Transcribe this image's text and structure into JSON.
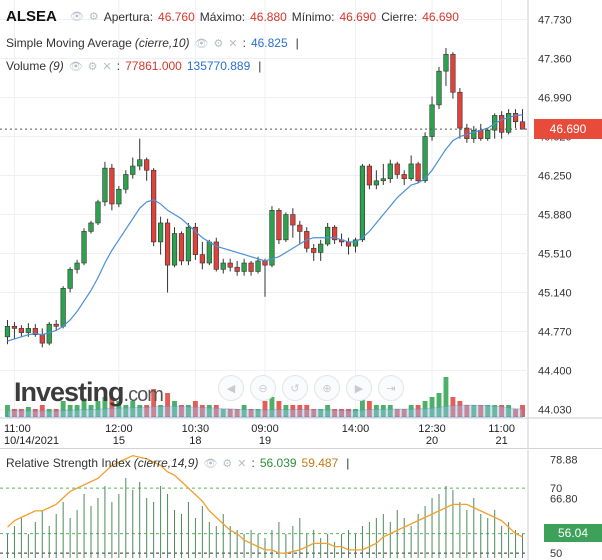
{
  "header": {
    "symbol": "ALSEA",
    "open_label": "Apertura:",
    "open_value": "46.760",
    "high_label": "Máximo:",
    "high_value": "46.880",
    "low_label": "Mínimo:",
    "low_value": "46.690",
    "close_label": "Cierre:",
    "close_value": "46.690",
    "sma_label": "Simple Moving Average",
    "sma_params": "(cierre,10)",
    "sma_value": "46.825",
    "volume_label": "Volume",
    "volume_params": "(9)",
    "volume_value1": "77861.000",
    "volume_value2": "135770.889"
  },
  "price_axis": {
    "ticks": [
      "47.730",
      "47.360",
      "46.990",
      "46.620",
      "46.250",
      "45.880",
      "45.510",
      "45.140",
      "44.770",
      "44.400",
      "44.030"
    ],
    "current_price": "46.690"
  },
  "time_axis": {
    "labels": [
      {
        "time": "11:00",
        "date": "10/14/2021"
      },
      {
        "time": "12:00",
        "date": "15"
      },
      {
        "time": "10:30",
        "date": "18"
      },
      {
        "time": "09:00",
        "date": "19"
      },
      {
        "time": "14:00",
        "date": ""
      },
      {
        "time": "12:30",
        "date": "20"
      },
      {
        "time": "11:00",
        "date": "21"
      }
    ]
  },
  "logo": {
    "brand": "Investing",
    "suffix": ".com"
  },
  "nav_icons": [
    "scroll-left-icon",
    "zoom-out-icon",
    "reset-icon",
    "zoom-in-icon",
    "scroll-right-icon",
    "scroll-end-icon"
  ],
  "rsi": {
    "label": "Relative Strength Index",
    "params": "(cierre,14,9)",
    "value1": "56.039",
    "value2": "59.487",
    "ticks": [
      "78.88",
      "70",
      "66.80",
      "50"
    ],
    "badge": "56.04"
  },
  "colors": {
    "up": "#2ca24e",
    "down": "#e0413a",
    "sma": "#4a90d9",
    "rsi_line": "#f0a030",
    "badge_red": "#e84b3a",
    "badge_green": "#3ea15a"
  },
  "chart_data": {
    "type": "candlestick",
    "y_range": [
      43.95,
      47.82
    ],
    "candles": [
      {
        "o": 44.72,
        "h": 44.88,
        "l": 44.65,
        "c": 44.82
      },
      {
        "o": 44.82,
        "h": 44.86,
        "l": 44.7,
        "c": 44.8
      },
      {
        "o": 44.8,
        "h": 44.83,
        "l": 44.72,
        "c": 44.76
      },
      {
        "o": 44.76,
        "h": 44.85,
        "l": 44.72,
        "c": 44.8
      },
      {
        "o": 44.8,
        "h": 44.84,
        "l": 44.72,
        "c": 44.74
      },
      {
        "o": 44.74,
        "h": 44.8,
        "l": 44.62,
        "c": 44.66
      },
      {
        "o": 44.66,
        "h": 44.86,
        "l": 44.64,
        "c": 44.84
      },
      {
        "o": 44.84,
        "h": 44.88,
        "l": 44.78,
        "c": 44.82
      },
      {
        "o": 44.82,
        "h": 45.2,
        "l": 44.8,
        "c": 45.18
      },
      {
        "o": 45.18,
        "h": 45.38,
        "l": 45.14,
        "c": 45.36
      },
      {
        "o": 45.36,
        "h": 45.45,
        "l": 45.32,
        "c": 45.42
      },
      {
        "o": 45.42,
        "h": 45.75,
        "l": 45.4,
        "c": 45.72
      },
      {
        "o": 45.72,
        "h": 45.82,
        "l": 45.7,
        "c": 45.8
      },
      {
        "o": 45.8,
        "h": 46.02,
        "l": 45.78,
        "c": 46.0
      },
      {
        "o": 46.0,
        "h": 46.38,
        "l": 45.96,
        "c": 46.32
      },
      {
        "o": 46.32,
        "h": 46.36,
        "l": 45.92,
        "c": 45.98
      },
      {
        "o": 45.98,
        "h": 46.15,
        "l": 45.95,
        "c": 46.12
      },
      {
        "o": 46.12,
        "h": 46.3,
        "l": 46.08,
        "c": 46.26
      },
      {
        "o": 46.26,
        "h": 46.42,
        "l": 46.22,
        "c": 46.34
      },
      {
        "o": 46.34,
        "h": 46.6,
        "l": 46.3,
        "c": 46.4
      },
      {
        "o": 46.4,
        "h": 46.42,
        "l": 46.2,
        "c": 46.3
      },
      {
        "o": 46.3,
        "h": 46.32,
        "l": 45.58,
        "c": 45.62
      },
      {
        "o": 45.62,
        "h": 45.86,
        "l": 45.5,
        "c": 45.8
      },
      {
        "o": 45.8,
        "h": 45.84,
        "l": 45.14,
        "c": 45.4
      },
      {
        "o": 45.4,
        "h": 45.76,
        "l": 45.38,
        "c": 45.7
      },
      {
        "o": 45.7,
        "h": 45.72,
        "l": 45.4,
        "c": 45.44
      },
      {
        "o": 45.44,
        "h": 45.8,
        "l": 45.4,
        "c": 45.76
      },
      {
        "o": 45.76,
        "h": 45.8,
        "l": 45.45,
        "c": 45.5
      },
      {
        "o": 45.5,
        "h": 45.62,
        "l": 45.36,
        "c": 45.42
      },
      {
        "o": 45.42,
        "h": 45.64,
        "l": 45.4,
        "c": 45.62
      },
      {
        "o": 45.62,
        "h": 45.66,
        "l": 45.34,
        "c": 45.36
      },
      {
        "o": 45.36,
        "h": 45.46,
        "l": 45.32,
        "c": 45.42
      },
      {
        "o": 45.42,
        "h": 45.46,
        "l": 45.34,
        "c": 45.38
      },
      {
        "o": 45.38,
        "h": 45.44,
        "l": 45.3,
        "c": 45.34
      },
      {
        "o": 45.34,
        "h": 45.46,
        "l": 45.3,
        "c": 45.42
      },
      {
        "o": 45.42,
        "h": 45.44,
        "l": 45.3,
        "c": 45.34
      },
      {
        "o": 45.34,
        "h": 45.48,
        "l": 45.32,
        "c": 45.44
      },
      {
        "o": 45.44,
        "h": 45.46,
        "l": 45.1,
        "c": 45.4
      },
      {
        "o": 45.4,
        "h": 45.96,
        "l": 45.38,
        "c": 45.92
      },
      {
        "o": 45.92,
        "h": 45.94,
        "l": 45.6,
        "c": 45.64
      },
      {
        "o": 45.64,
        "h": 45.9,
        "l": 45.62,
        "c": 45.88
      },
      {
        "o": 45.88,
        "h": 45.94,
        "l": 45.66,
        "c": 45.78
      },
      {
        "o": 45.78,
        "h": 45.82,
        "l": 45.6,
        "c": 45.72
      },
      {
        "o": 45.72,
        "h": 45.76,
        "l": 45.52,
        "c": 45.56
      },
      {
        "o": 45.56,
        "h": 45.6,
        "l": 45.44,
        "c": 45.52
      },
      {
        "o": 45.52,
        "h": 45.64,
        "l": 45.44,
        "c": 45.6
      },
      {
        "o": 45.6,
        "h": 45.8,
        "l": 45.58,
        "c": 45.76
      },
      {
        "o": 45.76,
        "h": 45.78,
        "l": 45.6,
        "c": 45.64
      },
      {
        "o": 45.64,
        "h": 45.7,
        "l": 45.58,
        "c": 45.62
      },
      {
        "o": 45.62,
        "h": 45.66,
        "l": 45.5,
        "c": 45.58
      },
      {
        "o": 45.58,
        "h": 45.66,
        "l": 45.52,
        "c": 45.64
      },
      {
        "o": 45.64,
        "h": 46.36,
        "l": 45.62,
        "c": 46.34
      },
      {
        "o": 46.34,
        "h": 46.36,
        "l": 46.12,
        "c": 46.16
      },
      {
        "o": 46.16,
        "h": 46.3,
        "l": 46.12,
        "c": 46.2
      },
      {
        "o": 46.2,
        "h": 46.36,
        "l": 46.16,
        "c": 46.22
      },
      {
        "o": 46.22,
        "h": 46.4,
        "l": 46.18,
        "c": 46.36
      },
      {
        "o": 46.36,
        "h": 46.38,
        "l": 46.22,
        "c": 46.26
      },
      {
        "o": 46.26,
        "h": 46.3,
        "l": 46.16,
        "c": 46.22
      },
      {
        "o": 46.22,
        "h": 46.44,
        "l": 46.2,
        "c": 46.36
      },
      {
        "o": 46.36,
        "h": 46.38,
        "l": 46.18,
        "c": 46.2
      },
      {
        "o": 46.2,
        "h": 46.66,
        "l": 46.18,
        "c": 46.62
      },
      {
        "o": 46.62,
        "h": 47.0,
        "l": 46.58,
        "c": 46.92
      },
      {
        "o": 46.92,
        "h": 47.28,
        "l": 46.88,
        "c": 47.24
      },
      {
        "o": 47.24,
        "h": 47.46,
        "l": 47.1,
        "c": 47.4
      },
      {
        "o": 47.4,
        "h": 47.42,
        "l": 46.98,
        "c": 47.04
      },
      {
        "o": 47.04,
        "h": 47.08,
        "l": 46.6,
        "c": 46.7
      },
      {
        "o": 46.7,
        "h": 46.74,
        "l": 46.56,
        "c": 46.6
      },
      {
        "o": 46.6,
        "h": 46.72,
        "l": 46.56,
        "c": 46.68
      },
      {
        "o": 46.68,
        "h": 46.74,
        "l": 46.58,
        "c": 46.6
      },
      {
        "o": 46.6,
        "h": 46.7,
        "l": 46.58,
        "c": 46.68
      },
      {
        "o": 46.68,
        "h": 46.84,
        "l": 46.6,
        "c": 46.82
      },
      {
        "o": 46.82,
        "h": 46.86,
        "l": 46.6,
        "c": 46.66
      },
      {
        "o": 46.66,
        "h": 46.88,
        "l": 46.64,
        "c": 46.84
      },
      {
        "o": 46.84,
        "h": 46.88,
        "l": 46.7,
        "c": 46.76
      },
      {
        "o": 46.76,
        "h": 46.88,
        "l": 46.69,
        "c": 46.69
      }
    ],
    "sma": [
      44.68,
      44.7,
      44.72,
      44.74,
      44.75,
      44.74,
      44.76,
      44.78,
      44.82,
      44.88,
      44.96,
      45.06,
      45.16,
      45.28,
      45.42,
      45.54,
      45.64,
      45.74,
      45.84,
      45.94,
      46.0,
      46.02,
      45.98,
      45.92,
      45.88,
      45.84,
      45.78,
      45.72,
      45.66,
      45.62,
      45.58,
      45.56,
      45.54,
      45.52,
      45.5,
      45.48,
      45.46,
      45.44,
      45.46,
      45.48,
      45.52,
      45.56,
      45.6,
      45.64,
      45.66,
      45.66,
      45.66,
      45.66,
      45.64,
      45.62,
      45.62,
      45.66,
      45.72,
      45.8,
      45.88,
      45.96,
      46.04,
      46.1,
      46.16,
      46.18,
      46.22,
      46.3,
      46.4,
      46.5,
      46.58,
      46.62,
      46.64,
      46.66,
      46.68,
      46.7,
      46.74,
      46.78,
      46.8,
      46.82,
      46.825
    ],
    "volume": [
      0.3,
      0.2,
      0.2,
      0.25,
      0.2,
      0.3,
      0.2,
      0.2,
      0.4,
      0.3,
      0.3,
      0.4,
      0.3,
      0.4,
      0.5,
      0.5,
      0.4,
      0.3,
      0.4,
      0.3,
      0.3,
      0.7,
      0.3,
      0.6,
      0.4,
      0.3,
      0.3,
      0.4,
      0.3,
      0.3,
      0.3,
      0.2,
      0.2,
      0.2,
      0.3,
      0.2,
      0.2,
      0.4,
      0.5,
      0.4,
      0.3,
      0.3,
      0.3,
      0.3,
      0.2,
      0.2,
      0.3,
      0.2,
      0.2,
      0.2,
      0.2,
      0.6,
      0.4,
      0.3,
      0.3,
      0.3,
      0.2,
      0.2,
      0.3,
      0.3,
      0.4,
      0.5,
      0.6,
      1.0,
      0.5,
      0.4,
      0.3,
      0.3,
      0.3,
      0.3,
      0.3,
      0.3,
      0.3,
      0.2,
      0.3
    ],
    "volume_avg": [
      0.28,
      0.27,
      0.26,
      0.26,
      0.25,
      0.26,
      0.25,
      0.25,
      0.27,
      0.28,
      0.29,
      0.3,
      0.31,
      0.32,
      0.34,
      0.36,
      0.37,
      0.38,
      0.39,
      0.4,
      0.4,
      0.43,
      0.44,
      0.45,
      0.45,
      0.44,
      0.42,
      0.41,
      0.4,
      0.38,
      0.37,
      0.35,
      0.34,
      0.32,
      0.31,
      0.3,
      0.29,
      0.29,
      0.3,
      0.31,
      0.31,
      0.31,
      0.31,
      0.31,
      0.3,
      0.29,
      0.29,
      0.28,
      0.27,
      0.26,
      0.26,
      0.29,
      0.31,
      0.32,
      0.33,
      0.33,
      0.33,
      0.33,
      0.33,
      0.34,
      0.35,
      0.37,
      0.4,
      0.45,
      0.48,
      0.49,
      0.49,
      0.49,
      0.48,
      0.47,
      0.45,
      0.42,
      0.39,
      0.35,
      0.33
    ],
    "rsi_ticks_range": [
      48.5,
      80.5
    ],
    "rsi": [
      58,
      60,
      61,
      62,
      63,
      63,
      64,
      65,
      67,
      69,
      70,
      71,
      72,
      73,
      75,
      77,
      78,
      79,
      80,
      79.5,
      79,
      78,
      77,
      75,
      74,
      72,
      70,
      68,
      66,
      63,
      61,
      59,
      57,
      56,
      54,
      53,
      52,
      51,
      51,
      50,
      50,
      50.5,
      51,
      52,
      53,
      53,
      53,
      52,
      52,
      51,
      51,
      51,
      52,
      53,
      55,
      56,
      57,
      58,
      59,
      60,
      61,
      62,
      63,
      64,
      65,
      65,
      65,
      64,
      63,
      62,
      61,
      60,
      58,
      56,
      55
    ],
    "rsi_bars": [
      0.3,
      0.4,
      0.5,
      0.3,
      0.45,
      0.6,
      0.4,
      0.55,
      0.7,
      0.5,
      0.6,
      0.8,
      0.65,
      0.75,
      0.9,
      0.7,
      0.8,
      1.0,
      0.85,
      0.95,
      0.75,
      0.7,
      0.9,
      0.8,
      0.6,
      0.55,
      0.7,
      0.5,
      0.65,
      0.45,
      0.4,
      0.55,
      0.4,
      0.35,
      0.3,
      0.35,
      0.3,
      0.25,
      0.35,
      0.45,
      0.3,
      0.4,
      0.5,
      0.3,
      0.35,
      0.25,
      0.3,
      0.2,
      0.3,
      0.35,
      0.3,
      0.4,
      0.45,
      0.5,
      0.55,
      0.45,
      0.6,
      0.5,
      0.4,
      0.55,
      0.65,
      0.75,
      0.8,
      0.9,
      0.85,
      0.7,
      0.6,
      0.75,
      0.55,
      0.5,
      0.6,
      0.4,
      0.45,
      0.35,
      0.3
    ]
  }
}
